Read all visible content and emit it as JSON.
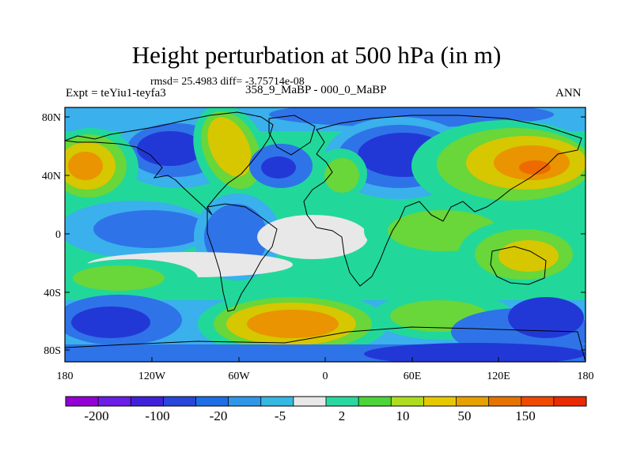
{
  "title": "Height perturbation at 500 hPa (in m)",
  "stats": "rmsd= 25.4983 diff= -3.75714e-08",
  "subtitle_left": "Expt = teYiu1-teyfa3",
  "subtitle_center": "358_9_MaBP - 000_0_MaBP",
  "subtitle_right": "ANN",
  "lat_ticks": [
    "80N",
    "40N",
    "0",
    "40S",
    "80S"
  ],
  "lon_ticks": [
    "180",
    "120W",
    "60W",
    "0",
    "60E",
    "120E",
    "180"
  ],
  "colorbar": {
    "labels": [
      "-200",
      "-100",
      "-20",
      "-5",
      "2",
      "10",
      "50",
      "150"
    ],
    "colors": [
      "#9400d3",
      "#6a1ee6",
      "#4020d9",
      "#2846d9",
      "#1e6ee6",
      "#2f97ea",
      "#36b8e3",
      "#e8e8e8",
      "#2ad7a0",
      "#4cd53a",
      "#aedc1e",
      "#e6c800",
      "#e7a000",
      "#e67300",
      "#f04a00",
      "#ea2a00"
    ]
  },
  "colors": {
    "strong_neg": "#2238d6",
    "mid_neg": "#2f73e8",
    "weak_neg": "#3ab0ec",
    "neutral": "#e8e8e8",
    "weak_pos": "#21d89a",
    "mid_pos": "#69d63a",
    "pos": "#d6c700",
    "strong_pos": "#e99400",
    "peak_pos": "#ee6a00"
  }
}
